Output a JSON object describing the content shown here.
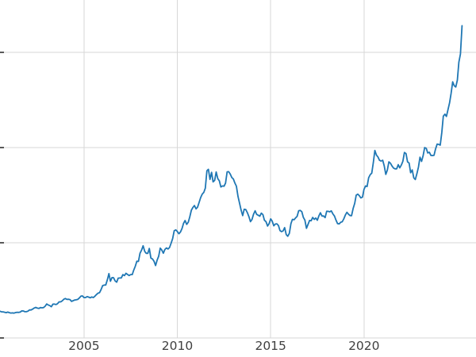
{
  "style": {
    "background": "#ffffff",
    "grid_color": "#d7d7d7",
    "tick_color": "#2e2e2e",
    "tick_label_color": "#404040"
  },
  "chart_data": {
    "type": "line",
    "title": "",
    "xlabel": "",
    "ylabel": "",
    "grid": true,
    "legend": false,
    "line_color": "#1f77b4",
    "line_width": 1.8,
    "xlim": [
      2000.5,
      2026.0
    ],
    "ylim": [
      -200,
      3550
    ],
    "xticks": [
      2005,
      2010,
      2015,
      2020
    ],
    "xtick_labels": [
      "2005",
      "2010",
      "2015",
      "2020"
    ],
    "yticks": [
      0,
      1000,
      2000,
      3000
    ],
    "ytick_labels_visible": false,
    "x_start": 2000.5,
    "x_step": 0.0833333,
    "values": [
      281,
      274,
      274,
      270,
      266,
      272,
      266,
      262,
      263,
      261,
      267,
      270,
      268,
      272,
      284,
      283,
      276,
      276,
      282,
      295,
      294,
      303,
      314,
      321,
      313,
      310,
      319,
      317,
      319,
      333,
      357,
      347,
      340,
      328,
      355,
      356,
      351,
      360,
      379,
      379,
      390,
      407,
      414,
      405,
      407,
      403,
      384,
      392,
      398,
      401,
      405,
      420,
      439,
      442,
      424,
      424,
      434,
      429,
      422,
      431,
      424,
      438,
      456,
      470,
      476,
      510,
      550,
      555,
      557,
      611,
      676,
      596,
      634,
      633,
      599,
      586,
      628,
      630,
      631,
      665,
      655,
      679,
      667,
      656,
      666,
      666,
      713,
      755,
      806,
      804,
      890,
      922,
      968,
      910,
      889,
      889,
      940,
      839,
      830,
      807,
      761,
      816,
      858,
      943,
      924,
      890,
      929,
      946,
      934,
      950,
      996,
      1043,
      1127,
      1135,
      1118,
      1095,
      1113,
      1149,
      1205,
      1233,
      1193,
      1216,
      1271,
      1342,
      1370,
      1391,
      1356,
      1373,
      1424,
      1474,
      1511,
      1529,
      1573,
      1756,
      1772,
      1666,
      1739,
      1640,
      1656,
      1743,
      1674,
      1650,
      1586,
      1597,
      1594,
      1627,
      1745,
      1747,
      1722,
      1685,
      1671,
      1627,
      1593,
      1487,
      1414,
      1343,
      1285,
      1352,
      1349,
      1316,
      1276,
      1222,
      1244,
      1300,
      1336,
      1298,
      1289,
      1279,
      1311,
      1296,
      1237,
      1222,
      1176,
      1201,
      1251,
      1227,
      1178,
      1197,
      1199,
      1181,
      1128,
      1117,
      1125,
      1159,
      1086,
      1068,
      1098,
      1200,
      1246,
      1242,
      1260,
      1277,
      1337,
      1340,
      1327,
      1266,
      1238,
      1152,
      1192,
      1234,
      1231,
      1266,
      1246,
      1260,
      1237,
      1283,
      1315,
      1280,
      1282,
      1264,
      1331,
      1330,
      1325,
      1335,
      1303,
      1281,
      1238,
      1201,
      1198,
      1215,
      1221,
      1250,
      1291,
      1320,
      1301,
      1286,
      1284,
      1359,
      1413,
      1500,
      1511,
      1495,
      1471,
      1479,
      1561,
      1597,
      1591,
      1683,
      1716,
      1732,
      1843,
      1969,
      1922,
      1900,
      1866,
      1858,
      1867,
      1808,
      1718,
      1762,
      1850,
      1835,
      1807,
      1784,
      1777,
      1777,
      1820,
      1787,
      1817,
      1856,
      1948,
      1937,
      1850,
      1837,
      1736,
      1765,
      1681,
      1664,
      1726,
      1797,
      1898,
      1855,
      1913,
      2000,
      1992,
      1943,
      1951,
      1918,
      1916,
      1919,
      1984,
      2036,
      2034,
      2025,
      2158,
      2330,
      2351,
      2327,
      2398,
      2470,
      2568,
      2690,
      2651,
      2636,
      2708,
      2897,
      2983,
      3280
    ]
  }
}
